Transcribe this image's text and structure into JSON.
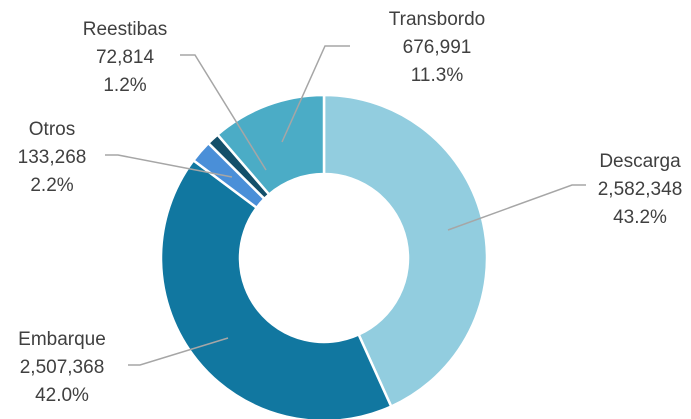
{
  "chart_data": {
    "type": "donut",
    "categories": [
      "Descarga",
      "Embarque",
      "Otros",
      "Reestibas",
      "Transbordo"
    ],
    "values": [
      2582348,
      2507368,
      133268,
      72814,
      676991
    ],
    "value_labels": [
      "2,582,348",
      "2,507,368",
      "133,268",
      "72,814",
      "676,991"
    ],
    "percentages": [
      43.2,
      42.0,
      2.2,
      1.2,
      11.3
    ],
    "percentage_labels": [
      "43.2%",
      "42.0%",
      "2.2%",
      "1.2%",
      "11.3%"
    ],
    "colors": [
      "#92cddf",
      "#1177a0",
      "#4a8fd8",
      "#134f6a",
      "#4bacc6"
    ]
  }
}
